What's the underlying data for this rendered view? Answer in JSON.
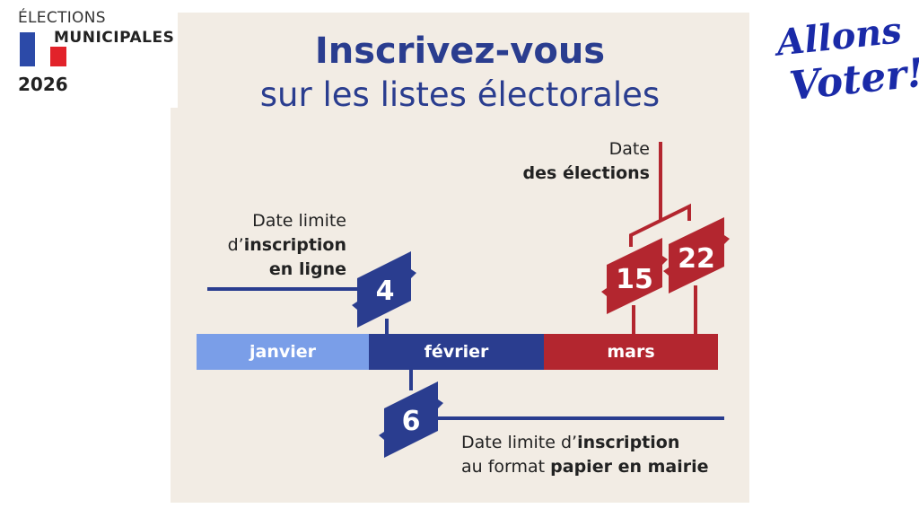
{
  "logo": {
    "line1": "ÉLECTIONS",
    "line2": "MUNICIPALES",
    "year": "2026"
  },
  "slogan": {
    "line1": "Allons",
    "line2": "Voter!"
  },
  "title": {
    "line1": "Inscrivez-vous",
    "line2": "sur les listes électorales"
  },
  "months": [
    {
      "label": "janvier",
      "color": "#7a9ee8"
    },
    {
      "label": "février",
      "color": "#2a3d8f"
    },
    {
      "label": "mars",
      "color": "#b3262f"
    }
  ],
  "online_deadline": {
    "day": "4",
    "l1": "Date limite",
    "l2a": "d’",
    "l2b": "inscription",
    "l3": "en ligne"
  },
  "paper_deadline": {
    "day": "6",
    "l1a": "Date limite d’",
    "l1b": "inscription",
    "l2a": "au format ",
    "l2b": "papier en mairie"
  },
  "elections": {
    "l1": "Date",
    "l2": "des élections",
    "round1": "15",
    "round2": "22"
  },
  "colors": {
    "navy": "#2a3d8f",
    "red": "#b3262f",
    "light_blue": "#7a9ee8",
    "background": "#f2ece4"
  }
}
